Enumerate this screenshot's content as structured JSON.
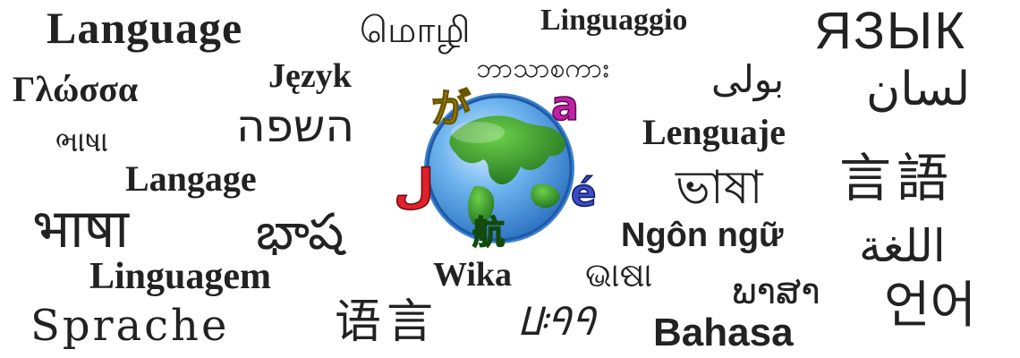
{
  "words": {
    "language": "Language",
    "tamil": "மொழி",
    "linguaggio": "Linguaggio",
    "yazyk": "ЯЗЫК",
    "glossa": "Γλώσσα",
    "jezyk": "Język",
    "burmese": "ဘာသာစကား",
    "urdu": "بولی",
    "lisan": "لسان",
    "gujarati": "ભાષા",
    "hebrew": "השפה",
    "lenguaje": "Lenguaje",
    "langage": "Langage",
    "bengali": "ভাষা",
    "gengo": "言語",
    "bhasha_hindi": "भाषा",
    "telugu": "భాష",
    "ngon_ngu": "Ngôn ngữ",
    "lugha": "اللغة",
    "linguagem": "Linguagem",
    "wika": "Wika",
    "odia": "ଭାଷା",
    "lao": "ພາສາ",
    "sprache": "Sprache",
    "yuyan": "语言",
    "bamum": "ꚶꛀꛀ",
    "bahasa": "Bahasa",
    "eoneo": "언어"
  },
  "logo": {
    "name": "globe-with-letters",
    "letters": {
      "kana": "が",
      "latin_a": "a",
      "arabic_j": "ل",
      "e_acute": "é",
      "chinese": "航"
    },
    "colors": {
      "kana": "#d4b400",
      "latin_a": "#c020a8",
      "arabic_j": "#e0202a",
      "e_acute": "#3a4cc8",
      "chinese": "#3aa22a",
      "ocean": "#5aa8e8",
      "land": "#2e8e2a"
    }
  }
}
